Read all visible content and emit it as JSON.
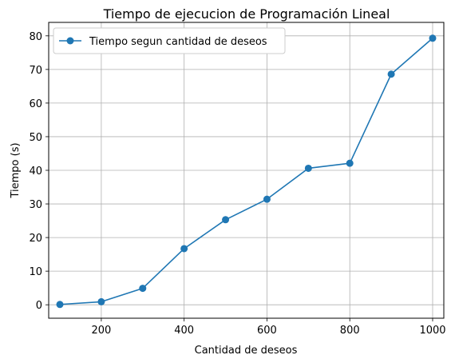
{
  "chart_data": {
    "type": "line",
    "title": "Tiempo de ejecucion de Programación Lineal",
    "xlabel": "Cantidad de deseos",
    "ylabel": "Tiempo (s)",
    "xlim": [
      73,
      1027
    ],
    "ylim": [
      -4,
      84
    ],
    "xticks": [
      200,
      400,
      600,
      800,
      1000
    ],
    "yticks": [
      0,
      10,
      20,
      30,
      40,
      50,
      60,
      70,
      80
    ],
    "grid": true,
    "legend_position": "top-left",
    "series": [
      {
        "name": "Tiempo segun cantidad de deseos",
        "color": "#1f77b4",
        "marker": "circle",
        "x": [
          100,
          200,
          300,
          400,
          500,
          600,
          700,
          800,
          900,
          1000
        ],
        "y": [
          0.1,
          0.9,
          4.9,
          16.7,
          25.3,
          31.4,
          40.6,
          42.1,
          68.6,
          79.3
        ]
      }
    ]
  }
}
